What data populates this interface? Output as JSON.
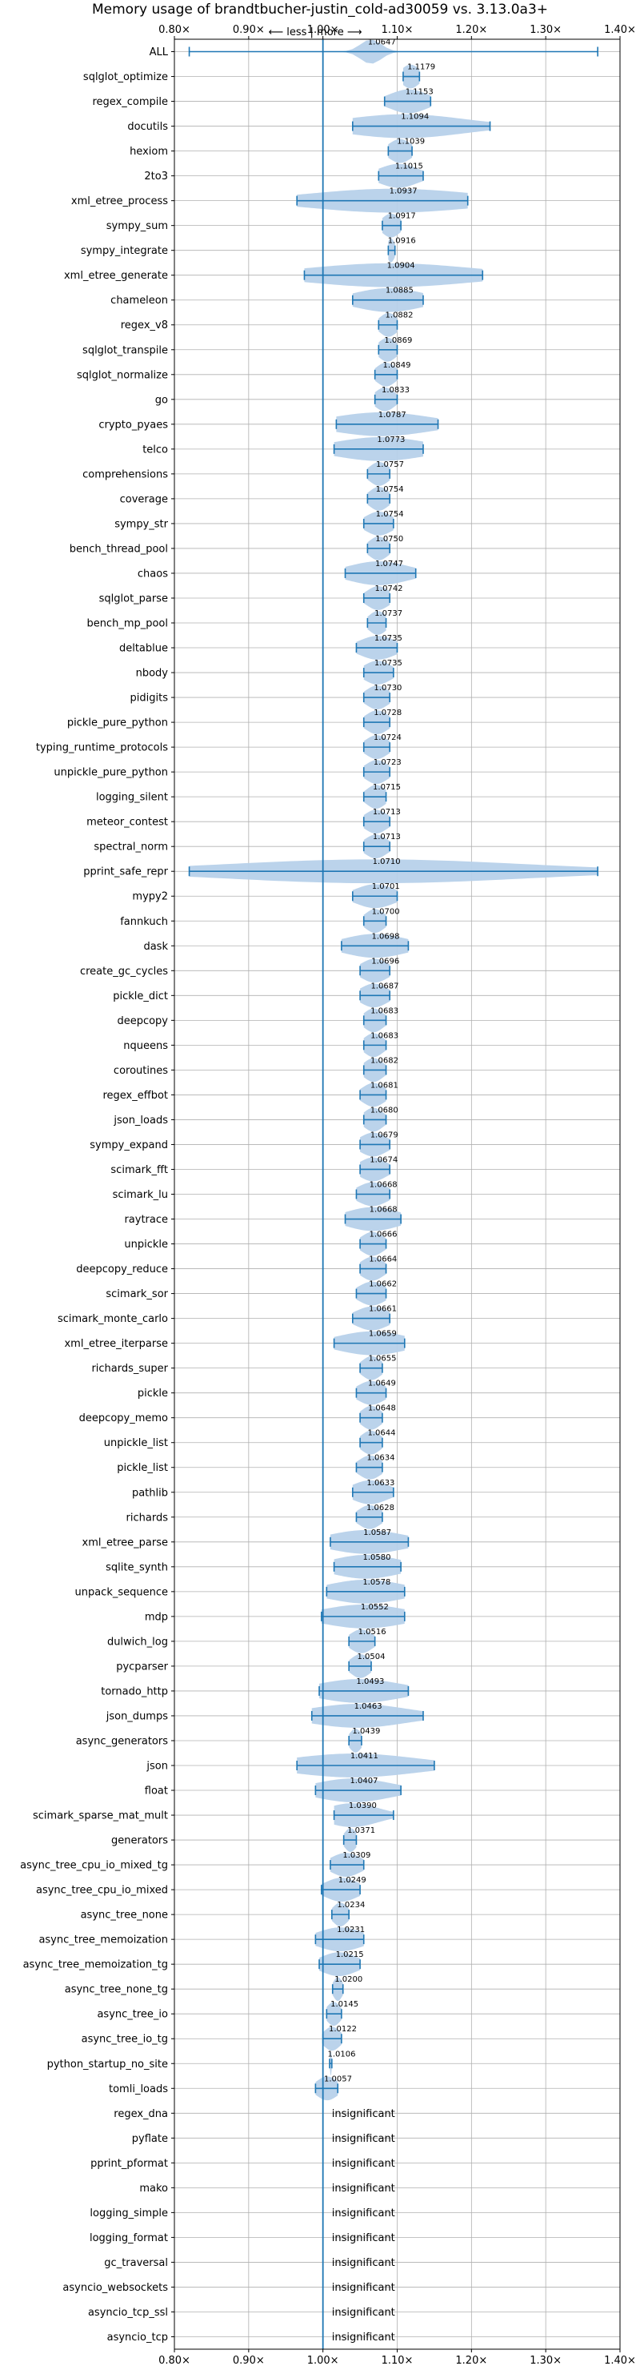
{
  "chart_data": {
    "type": "violin",
    "title": "Memory usage of brandtbucher-justin_cold-ad30059 vs. 3.13.0a3+",
    "direction_note": "⟵ less | more ⟶",
    "xlabel": "",
    "ylabel": "",
    "xlim": [
      0.8,
      1.4
    ],
    "x_ticks": [
      0.8,
      0.9,
      1.0,
      1.1,
      1.2,
      1.3,
      1.4
    ],
    "x_tick_labels": [
      "0.80×",
      "0.90×",
      "1.00×",
      "1.10×",
      "1.20×",
      "1.30×",
      "1.40×"
    ],
    "reference_line": 1.0,
    "grid": true,
    "colors": {
      "violin": "#b7d1ea",
      "line": "#1f77b4",
      "grid": "#b0b0b0"
    },
    "insignificant_label": "insignificant",
    "benchmarks": [
      {
        "name": "ALL",
        "value": 1.0647,
        "min": 0.82,
        "max": 1.37,
        "width": 0.014
      },
      {
        "name": "sqlglot_optimize",
        "value": 1.1179,
        "min": 1.108,
        "max": 1.13,
        "width": 0.012
      },
      {
        "name": "regex_compile",
        "value": 1.1153,
        "min": 1.083,
        "max": 1.145,
        "width": 0.025
      },
      {
        "name": "docutils",
        "value": 1.1094,
        "min": 1.04,
        "max": 1.225,
        "width": 0.08
      },
      {
        "name": "hexiom",
        "value": 1.1039,
        "min": 1.088,
        "max": 1.12,
        "width": 0.015
      },
      {
        "name": "2to3",
        "value": 1.1015,
        "min": 1.075,
        "max": 1.135,
        "width": 0.026
      },
      {
        "name": "xml_etree_process",
        "value": 1.0937,
        "min": 0.965,
        "max": 1.195,
        "width": 0.11
      },
      {
        "name": "sympy_sum",
        "value": 1.0917,
        "min": 1.08,
        "max": 1.105,
        "width": 0.012
      },
      {
        "name": "sympy_integrate",
        "value": 1.0916,
        "min": 1.088,
        "max": 1.097,
        "width": 0.005
      },
      {
        "name": "xml_etree_generate",
        "value": 1.0904,
        "min": 0.975,
        "max": 1.215,
        "width": 0.11
      },
      {
        "name": "chameleon",
        "value": 1.0885,
        "min": 1.04,
        "max": 1.135,
        "width": 0.045
      },
      {
        "name": "regex_v8",
        "value": 1.0882,
        "min": 1.075,
        "max": 1.1,
        "width": 0.012
      },
      {
        "name": "sqlglot_transpile",
        "value": 1.0869,
        "min": 1.075,
        "max": 1.1,
        "width": 0.012
      },
      {
        "name": "sqlglot_normalize",
        "value": 1.0849,
        "min": 1.07,
        "max": 1.1,
        "width": 0.013
      },
      {
        "name": "go",
        "value": 1.0833,
        "min": 1.07,
        "max": 1.1,
        "width": 0.013
      },
      {
        "name": "crypto_pyaes",
        "value": 1.0787,
        "min": 1.018,
        "max": 1.155,
        "width": 0.065
      },
      {
        "name": "telco",
        "value": 1.0773,
        "min": 1.015,
        "max": 1.135,
        "width": 0.06
      },
      {
        "name": "comprehensions",
        "value": 1.0757,
        "min": 1.06,
        "max": 1.09,
        "width": 0.013
      },
      {
        "name": "coverage",
        "value": 1.0754,
        "min": 1.06,
        "max": 1.09,
        "width": 0.013
      },
      {
        "name": "sympy_str",
        "value": 1.0754,
        "min": 1.055,
        "max": 1.095,
        "width": 0.018
      },
      {
        "name": "bench_thread_pool",
        "value": 1.075,
        "min": 1.06,
        "max": 1.09,
        "width": 0.013
      },
      {
        "name": "chaos",
        "value": 1.0747,
        "min": 1.03,
        "max": 1.125,
        "width": 0.04
      },
      {
        "name": "sqlglot_parse",
        "value": 1.0742,
        "min": 1.055,
        "max": 1.09,
        "width": 0.015
      },
      {
        "name": "bench_mp_pool",
        "value": 1.0737,
        "min": 1.06,
        "max": 1.085,
        "width": 0.012
      },
      {
        "name": "deltablue",
        "value": 1.0735,
        "min": 1.045,
        "max": 1.1,
        "width": 0.024
      },
      {
        "name": "nbody",
        "value": 1.0735,
        "min": 1.055,
        "max": 1.095,
        "width": 0.018
      },
      {
        "name": "pidigits",
        "value": 1.073,
        "min": 1.055,
        "max": 1.09,
        "width": 0.015
      },
      {
        "name": "pickle_pure_python",
        "value": 1.0728,
        "min": 1.055,
        "max": 1.09,
        "width": 0.015
      },
      {
        "name": "typing_runtime_protocols",
        "value": 1.0724,
        "min": 1.055,
        "max": 1.09,
        "width": 0.015
      },
      {
        "name": "unpickle_pure_python",
        "value": 1.0723,
        "min": 1.055,
        "max": 1.09,
        "width": 0.015
      },
      {
        "name": "logging_silent",
        "value": 1.0715,
        "min": 1.055,
        "max": 1.085,
        "width": 0.013
      },
      {
        "name": "meteor_contest",
        "value": 1.0713,
        "min": 1.055,
        "max": 1.09,
        "width": 0.015
      },
      {
        "name": "spectral_norm",
        "value": 1.0713,
        "min": 1.055,
        "max": 1.09,
        "width": 0.015
      },
      {
        "name": "pprint_safe_repr",
        "value": 1.071,
        "min": 0.82,
        "max": 1.37,
        "width": 0.2
      },
      {
        "name": "mypy2",
        "value": 1.0701,
        "min": 1.04,
        "max": 1.1,
        "width": 0.026
      },
      {
        "name": "fannkuch",
        "value": 1.07,
        "min": 1.055,
        "max": 1.085,
        "width": 0.013
      },
      {
        "name": "dask",
        "value": 1.0698,
        "min": 1.025,
        "max": 1.115,
        "width": 0.042
      },
      {
        "name": "create_gc_cycles",
        "value": 1.0696,
        "min": 1.05,
        "max": 1.09,
        "width": 0.018
      },
      {
        "name": "pickle_dict",
        "value": 1.0687,
        "min": 1.05,
        "max": 1.09,
        "width": 0.018
      },
      {
        "name": "deepcopy",
        "value": 1.0683,
        "min": 1.055,
        "max": 1.085,
        "width": 0.013
      },
      {
        "name": "nqueens",
        "value": 1.0683,
        "min": 1.055,
        "max": 1.085,
        "width": 0.013
      },
      {
        "name": "coroutines",
        "value": 1.0682,
        "min": 1.055,
        "max": 1.085,
        "width": 0.013
      },
      {
        "name": "regex_effbot",
        "value": 1.0681,
        "min": 1.05,
        "max": 1.085,
        "width": 0.015
      },
      {
        "name": "json_loads",
        "value": 1.068,
        "min": 1.055,
        "max": 1.085,
        "width": 0.013
      },
      {
        "name": "sympy_expand",
        "value": 1.0679,
        "min": 1.05,
        "max": 1.09,
        "width": 0.018
      },
      {
        "name": "scimark_fft",
        "value": 1.0674,
        "min": 1.05,
        "max": 1.09,
        "width": 0.018
      },
      {
        "name": "scimark_lu",
        "value": 1.0668,
        "min": 1.045,
        "max": 1.09,
        "width": 0.02
      },
      {
        "name": "raytrace",
        "value": 1.0668,
        "min": 1.03,
        "max": 1.105,
        "width": 0.035
      },
      {
        "name": "unpickle",
        "value": 1.0666,
        "min": 1.05,
        "max": 1.085,
        "width": 0.015
      },
      {
        "name": "deepcopy_reduce",
        "value": 1.0664,
        "min": 1.05,
        "max": 1.085,
        "width": 0.015
      },
      {
        "name": "scimark_sor",
        "value": 1.0662,
        "min": 1.045,
        "max": 1.085,
        "width": 0.018
      },
      {
        "name": "scimark_monte_carlo",
        "value": 1.0661,
        "min": 1.04,
        "max": 1.09,
        "width": 0.022
      },
      {
        "name": "xml_etree_iterparse",
        "value": 1.0659,
        "min": 1.015,
        "max": 1.11,
        "width": 0.045
      },
      {
        "name": "richards_super",
        "value": 1.0655,
        "min": 1.05,
        "max": 1.08,
        "width": 0.013
      },
      {
        "name": "pickle",
        "value": 1.0649,
        "min": 1.045,
        "max": 1.085,
        "width": 0.018
      },
      {
        "name": "deepcopy_memo",
        "value": 1.0648,
        "min": 1.05,
        "max": 1.08,
        "width": 0.013
      },
      {
        "name": "unpickle_list",
        "value": 1.0644,
        "min": 1.05,
        "max": 1.08,
        "width": 0.013
      },
      {
        "name": "pickle_list",
        "value": 1.0634,
        "min": 1.045,
        "max": 1.08,
        "width": 0.015
      },
      {
        "name": "pathlib",
        "value": 1.0633,
        "min": 1.04,
        "max": 1.095,
        "width": 0.024
      },
      {
        "name": "richards",
        "value": 1.0628,
        "min": 1.045,
        "max": 1.08,
        "width": 0.015
      },
      {
        "name": "xml_etree_parse",
        "value": 1.0587,
        "min": 1.01,
        "max": 1.115,
        "width": 0.05
      },
      {
        "name": "sqlite_synth",
        "value": 1.058,
        "min": 1.015,
        "max": 1.105,
        "width": 0.045
      },
      {
        "name": "unpack_sequence",
        "value": 1.0578,
        "min": 1.005,
        "max": 1.11,
        "width": 0.05
      },
      {
        "name": "mdp",
        "value": 1.0552,
        "min": 0.998,
        "max": 1.11,
        "width": 0.055
      },
      {
        "name": "dulwich_log",
        "value": 1.0516,
        "min": 1.035,
        "max": 1.07,
        "width": 0.015
      },
      {
        "name": "pycparser",
        "value": 1.0504,
        "min": 1.035,
        "max": 1.065,
        "width": 0.013
      },
      {
        "name": "tornado_http",
        "value": 1.0493,
        "min": 0.995,
        "max": 1.115,
        "width": 0.055
      },
      {
        "name": "json_dumps",
        "value": 1.0463,
        "min": 0.985,
        "max": 1.135,
        "width": 0.065
      },
      {
        "name": "async_generators",
        "value": 1.0439,
        "min": 1.035,
        "max": 1.052,
        "width": 0.008
      },
      {
        "name": "json",
        "value": 1.0411,
        "min": 0.965,
        "max": 1.15,
        "width": 0.085
      },
      {
        "name": "float",
        "value": 1.0407,
        "min": 0.99,
        "max": 1.105,
        "width": 0.05
      },
      {
        "name": "scimark_sparse_mat_mult",
        "value": 1.039,
        "min": 1.015,
        "max": 1.095,
        "width": 0.035
      },
      {
        "name": "generators",
        "value": 1.0371,
        "min": 1.028,
        "max": 1.045,
        "width": 0.008
      },
      {
        "name": "async_tree_cpu_io_mixed_tg",
        "value": 1.0309,
        "min": 1.01,
        "max": 1.055,
        "width": 0.02
      },
      {
        "name": "async_tree_cpu_io_mixed",
        "value": 1.0249,
        "min": 0.998,
        "max": 1.05,
        "width": 0.022
      },
      {
        "name": "async_tree_none",
        "value": 1.0234,
        "min": 1.012,
        "max": 1.035,
        "width": 0.01
      },
      {
        "name": "async_tree_memoization",
        "value": 1.0231,
        "min": 0.99,
        "max": 1.055,
        "width": 0.03
      },
      {
        "name": "async_tree_memoization_tg",
        "value": 1.0215,
        "min": 0.995,
        "max": 1.05,
        "width": 0.024
      },
      {
        "name": "async_tree_none_tg",
        "value": 1.02,
        "min": 1.013,
        "max": 1.027,
        "width": 0.006
      },
      {
        "name": "async_tree_io",
        "value": 1.0145,
        "min": 1.005,
        "max": 1.025,
        "width": 0.009
      },
      {
        "name": "async_tree_io_tg",
        "value": 1.0122,
        "min": 1.0,
        "max": 1.025,
        "width": 0.011
      },
      {
        "name": "python_startup_no_site",
        "value": 1.0106,
        "min": 1.009,
        "max": 1.012,
        "width": 0.001
      },
      {
        "name": "tomli_loads",
        "value": 1.0057,
        "min": 0.99,
        "max": 1.02,
        "width": 0.014
      },
      {
        "name": "regex_dna",
        "value": null,
        "insignificant": true
      },
      {
        "name": "pyflate",
        "value": null,
        "insignificant": true
      },
      {
        "name": "pprint_pformat",
        "value": null,
        "insignificant": true
      },
      {
        "name": "mako",
        "value": null,
        "insignificant": true
      },
      {
        "name": "logging_simple",
        "value": null,
        "insignificant": true
      },
      {
        "name": "logging_format",
        "value": null,
        "insignificant": true
      },
      {
        "name": "gc_traversal",
        "value": null,
        "insignificant": true
      },
      {
        "name": "asyncio_websockets",
        "value": null,
        "insignificant": true
      },
      {
        "name": "asyncio_tcp_ssl",
        "value": null,
        "insignificant": true
      },
      {
        "name": "asyncio_tcp",
        "value": null,
        "insignificant": true
      }
    ]
  }
}
